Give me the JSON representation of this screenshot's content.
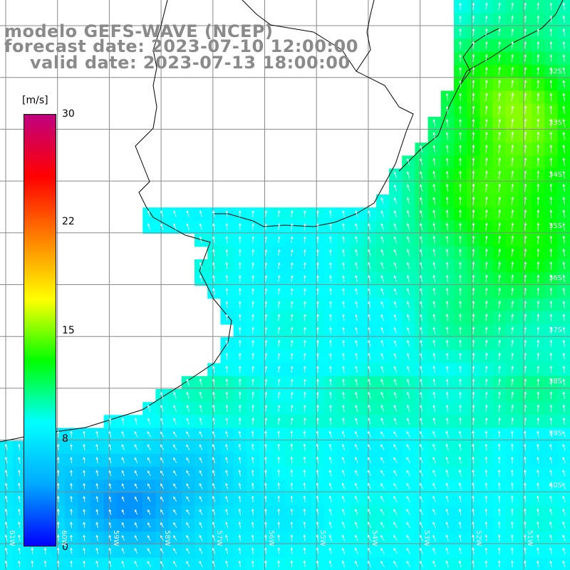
{
  "title": {
    "model": "modelo GEFS-WAVE (NCEP)",
    "forecast": "forecast date: 2023-07-10 12:00:00",
    "valid": "valid date: 2023-07-13 18:00:00"
  },
  "colorbar": {
    "unit": "[m/s]",
    "ticks": [
      "30",
      "22",
      "15",
      "8",
      "0"
    ],
    "min": 0,
    "max": 30,
    "colors": [
      "#0000ff",
      "#00aaff",
      "#00ffff",
      "#00ff00",
      "#ffff00",
      "#ff8000",
      "#ff0000",
      "#c0007f"
    ]
  },
  "map": {
    "lat_labels": [
      "32S",
      "33S",
      "34S",
      "35S",
      "36S",
      "37S",
      "38S",
      "39S",
      "40S"
    ],
    "lon_labels": [
      "61W",
      "60W",
      "59W",
      "58W",
      "57W",
      "56W",
      "55W",
      "54W",
      "53W",
      "52W",
      "51W"
    ],
    "grid_color": "#888888",
    "coast_color": "#000000",
    "arrow_color": "#ffffff"
  }
}
